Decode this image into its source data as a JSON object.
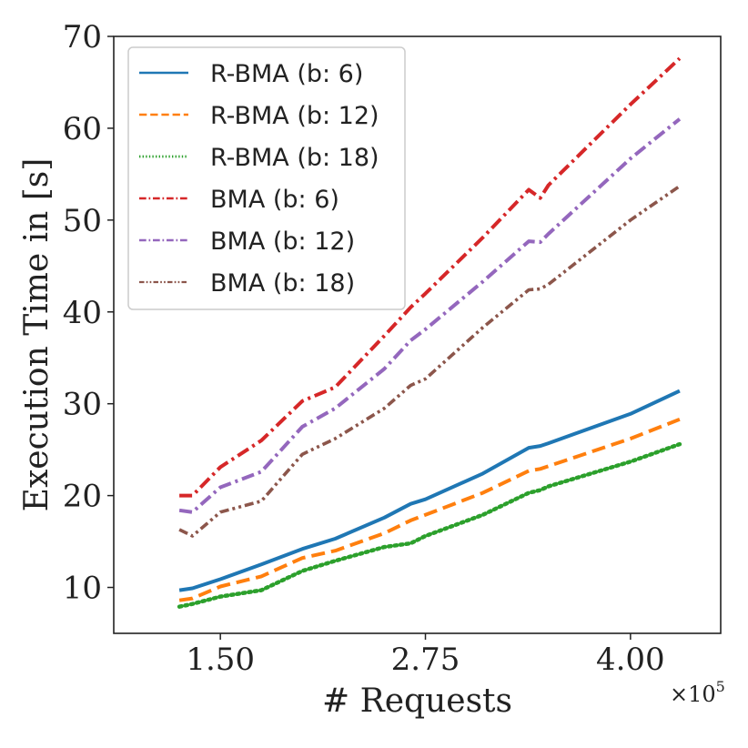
{
  "chart_data": {
    "type": "line",
    "title": "",
    "xlabel": "# Requests",
    "ylabel": "Execution Time in [s]",
    "x_offset_label": "×10",
    "x_offset_exp": "5",
    "xlim": [
      0.85,
      4.55
    ],
    "ylim": [
      5,
      70
    ],
    "xticks": [
      1.5,
      2.75,
      4.0
    ],
    "xtick_labels": [
      "1.50",
      "2.75",
      "4.00"
    ],
    "yticks": [
      10,
      20,
      30,
      40,
      50,
      60,
      70
    ],
    "ytick_labels": [
      "10",
      "20",
      "30",
      "40",
      "50",
      "60",
      "70"
    ],
    "legend_position": "top-left",
    "x": [
      1.25,
      1.33,
      1.5,
      1.75,
      2.0,
      2.2,
      2.5,
      2.66,
      2.75,
      3.1,
      3.38,
      3.45,
      3.5,
      4.0,
      4.3
    ],
    "series": [
      {
        "name": "R-BMA (b: 6)",
        "color": "#1f77b4",
        "dash": "solid",
        "values": [
          9.7,
          9.9,
          10.9,
          12.5,
          14.2,
          15.3,
          17.6,
          19.1,
          19.6,
          22.4,
          25.2,
          25.4,
          25.7,
          28.9,
          31.4
        ]
      },
      {
        "name": "R-BMA (b: 12)",
        "color": "#ff7f0e",
        "dash": "dashed",
        "values": [
          8.6,
          8.8,
          10.1,
          11.2,
          13.2,
          14.0,
          15.9,
          17.3,
          17.9,
          20.3,
          22.7,
          22.9,
          23.2,
          26.2,
          28.3
        ]
      },
      {
        "name": "R-BMA (b: 18)",
        "color": "#2ca02c",
        "dash": "dotted",
        "values": [
          7.9,
          8.2,
          9.0,
          9.7,
          11.8,
          12.9,
          14.4,
          14.8,
          15.6,
          17.9,
          20.3,
          20.6,
          21.0,
          23.7,
          25.6
        ]
      },
      {
        "name": "BMA (b: 6)",
        "color": "#d62728",
        "dash": "dashdot",
        "values": [
          20.0,
          20.0,
          23.1,
          26.0,
          30.3,
          31.8,
          37.4,
          40.5,
          42.0,
          48.1,
          53.3,
          52.4,
          53.8,
          62.6,
          67.6
        ]
      },
      {
        "name": "BMA (b: 12)",
        "color": "#9467bd",
        "dash": "dashdot",
        "values": [
          18.4,
          18.2,
          20.9,
          22.6,
          27.5,
          29.5,
          33.8,
          36.9,
          38.1,
          43.3,
          47.7,
          47.6,
          48.5,
          56.7,
          61.0
        ]
      },
      {
        "name": "BMA (b: 18)",
        "color": "#8c564b",
        "dash": "dashdotdot",
        "values": [
          16.3,
          15.6,
          18.2,
          19.4,
          24.5,
          26.2,
          29.5,
          32.0,
          32.7,
          38.3,
          42.4,
          42.5,
          43.0,
          50.0,
          53.7
        ]
      }
    ]
  }
}
